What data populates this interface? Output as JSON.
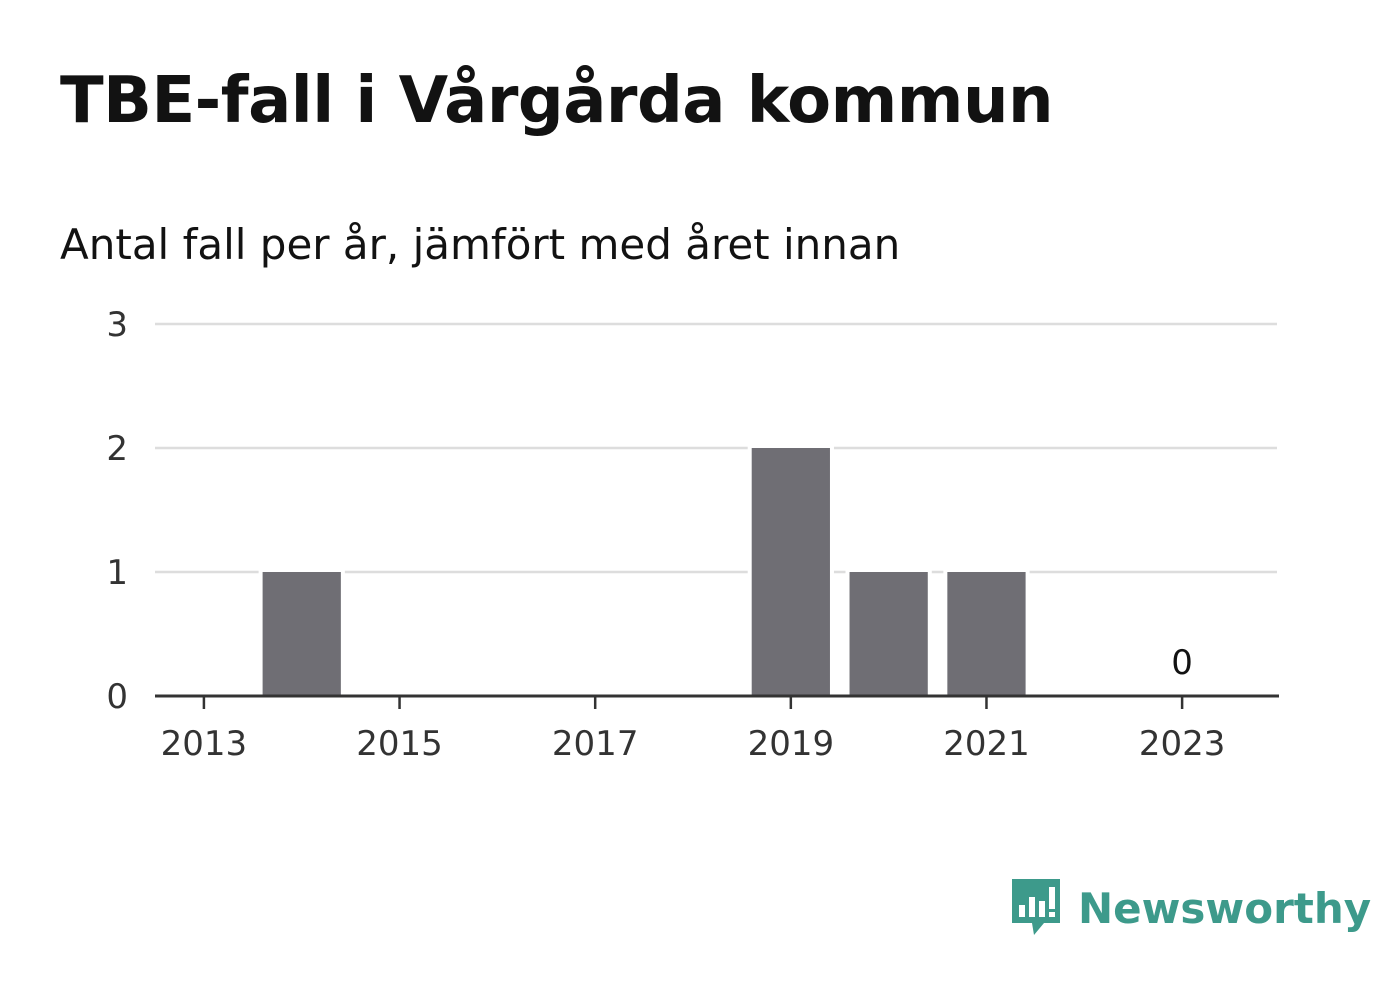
{
  "title": "TBE-fall i Vårgårda kommun",
  "subtitle": "Antal fall per år, jämfört med året innan",
  "brand": {
    "name": "Newsworthy",
    "color": "#3d9a8b",
    "icon": "newsworthy-chart-bubble-icon"
  },
  "chart_data": {
    "type": "bar",
    "x": [
      2013,
      2014,
      2015,
      2016,
      2017,
      2018,
      2019,
      2020,
      2021,
      2022,
      2023
    ],
    "values": [
      0,
      1,
      0,
      0,
      0,
      0,
      2,
      1,
      1,
      0,
      0
    ],
    "xticks": [
      "2013",
      "2015",
      "2017",
      "2019",
      "2021",
      "2023"
    ],
    "yticks": [
      0,
      1,
      2,
      3
    ],
    "ylim": [
      0,
      3
    ],
    "xlim": [
      2012.5,
      2023.97
    ],
    "grid": true,
    "bar_color": "#6f6e74",
    "grid_color": "#dddddd",
    "axis_color": "#333333",
    "data_labels": [
      {
        "x": 2023,
        "text": "0"
      }
    ]
  }
}
